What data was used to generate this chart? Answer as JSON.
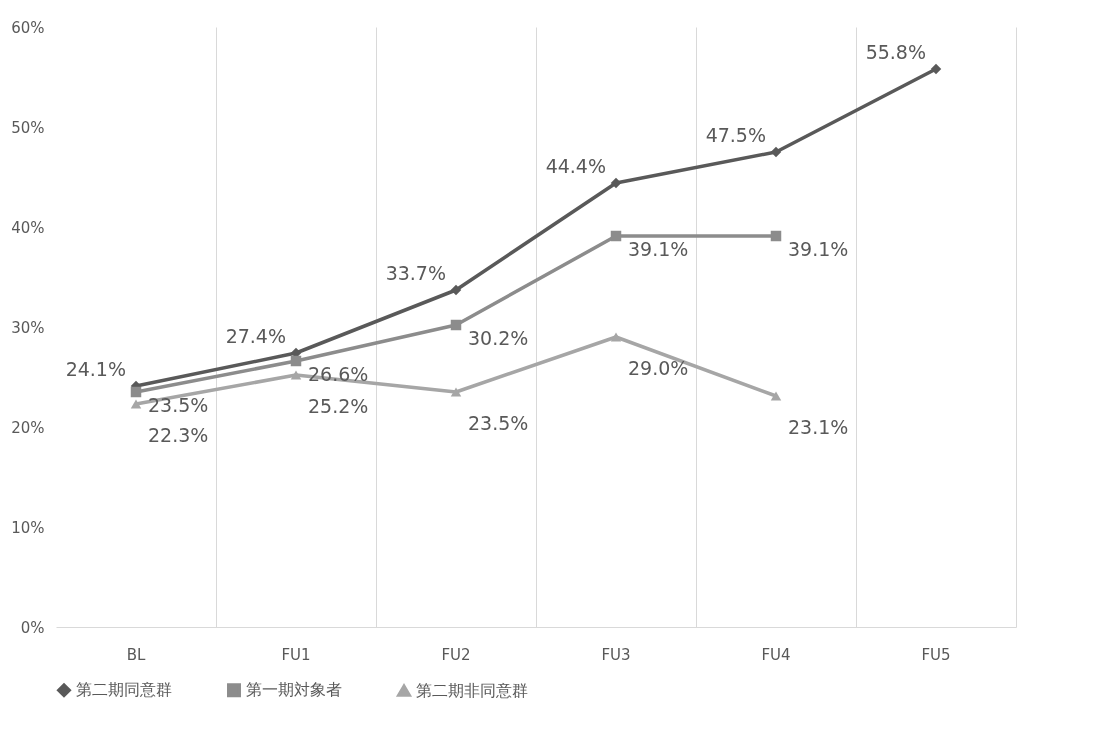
{
  "chart_data": {
    "type": "line",
    "categories": [
      "BL",
      "FU1",
      "FU2",
      "FU3",
      "FU4",
      "FU5"
    ],
    "series": [
      {
        "name": "第二期同意群",
        "color": "#595959",
        "marker": "diamond",
        "values": [
          24.1,
          27.4,
          33.7,
          44.4,
          47.5,
          55.8
        ],
        "value_labels": [
          "24.1%",
          "27.4%",
          "33.7%",
          "44.4%",
          "47.5%",
          "55.8%"
        ]
      },
      {
        "name": "第一期対象者",
        "color": "#8c8c8c",
        "marker": "square",
        "values": [
          23.5,
          26.6,
          30.2,
          39.1,
          39.1,
          null
        ],
        "value_labels": [
          "23.5%",
          "26.6%",
          "30.2%",
          "39.1%",
          "39.1%",
          null
        ]
      },
      {
        "name": "第二期非同意群",
        "color": "#a6a6a6",
        "marker": "triangle",
        "values": [
          22.3,
          25.2,
          23.5,
          29.0,
          23.1,
          null
        ],
        "value_labels": [
          "22.3%",
          "25.2%",
          "23.5%",
          "29.0%",
          "23.1%",
          null
        ]
      }
    ],
    "ylim": [
      0,
      60
    ],
    "yticks": [
      {
        "value": 0,
        "label": "0%"
      },
      {
        "value": 10,
        "label": "10%"
      },
      {
        "value": 20,
        "label": "20%"
      },
      {
        "value": 30,
        "label": "30%"
      },
      {
        "value": 40,
        "label": "40%"
      },
      {
        "value": 50,
        "label": "50%"
      },
      {
        "value": 60,
        "label": "60%"
      }
    ],
    "grid": "x",
    "legend": "bottom"
  }
}
